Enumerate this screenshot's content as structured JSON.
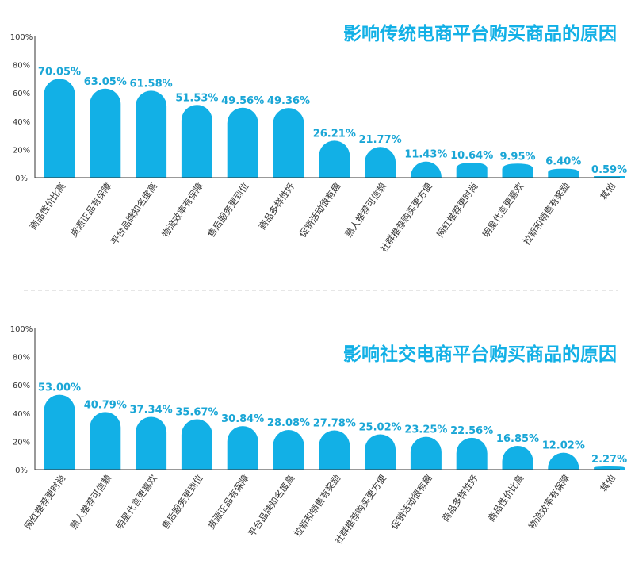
{
  "colors": {
    "bar": "#12b0e6",
    "title": "#12b0e6",
    "value": "#1aa6d6",
    "axis": "#333333",
    "divider": "#cccccc"
  },
  "chart_data": [
    {
      "type": "bar",
      "title": "影响传统电商平台购买商品的原因",
      "ylim": [
        0,
        100
      ],
      "y_ticks": [
        "0%",
        "20%",
        "40%",
        "60%",
        "80%",
        "100%"
      ],
      "categories": [
        "商品性价比高",
        "货源正品有保障",
        "平台品牌知名度高",
        "物流效率有保障",
        "售后服务更到位",
        "商品多样性好",
        "促销活动很有趣",
        "熟人推荐可信赖",
        "社群推荐购买更方便",
        "网红推荐更时尚",
        "明星代言更喜欢",
        "拉新和销售有奖励",
        "其他"
      ],
      "values": [
        70.05,
        63.05,
        61.58,
        51.53,
        49.56,
        49.36,
        26.21,
        21.77,
        11.43,
        10.64,
        9.95,
        6.4,
        0.59
      ],
      "value_labels": [
        "70.05%",
        "63.05%",
        "61.58%",
        "51.53%",
        "49.56%",
        "49.36%",
        "26.21%",
        "21.77%",
        "11.43%",
        "10.64%",
        "9.95%",
        "6.40%",
        "0.59%"
      ]
    },
    {
      "type": "bar",
      "title": "影响社交电商平台购买商品的原因",
      "ylim": [
        0,
        100
      ],
      "y_ticks": [
        "0%",
        "20%",
        "40%",
        "60%",
        "80%",
        "100%"
      ],
      "categories": [
        "网红推荐更时尚",
        "熟人推荐可信赖",
        "明星代言更喜欢",
        "售后服务更到位",
        "货源正品有保障",
        "平台品牌知名度高",
        "拉新和销售有奖励",
        "社群推荐购买更方便",
        "促销活动很有趣",
        "商品多样性好",
        "商品性价比高",
        "物流效率有保障",
        "其他"
      ],
      "values": [
        53.0,
        40.79,
        37.34,
        35.67,
        30.84,
        28.08,
        27.78,
        25.02,
        23.25,
        22.56,
        16.85,
        12.02,
        2.27
      ],
      "value_labels": [
        "53.00%",
        "40.79%",
        "37.34%",
        "35.67%",
        "30.84%",
        "28.08%",
        "27.78%",
        "25.02%",
        "23.25%",
        "22.56%",
        "16.85%",
        "12.02%",
        "2.27%"
      ]
    }
  ]
}
